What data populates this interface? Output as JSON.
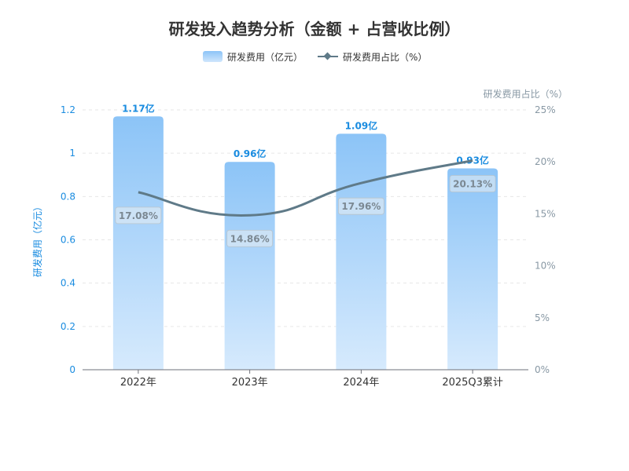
{
  "chart_data": {
    "type": "bar",
    "title": "研发投入趋势分析（金额 + 占营收比例）",
    "categories": [
      "2022年",
      "2023年",
      "2024年",
      "2025Q3累计"
    ],
    "series": [
      {
        "name": "研发费用（亿元）",
        "type": "bar",
        "axis": "left",
        "values": [
          1.17,
          0.96,
          1.09,
          0.93
        ],
        "labels": [
          "1.17亿",
          "0.96亿",
          "1.09亿",
          "0.93亿"
        ]
      },
      {
        "name": "研发费用占比（%）",
        "type": "line",
        "axis": "right",
        "values": [
          17.08,
          14.86,
          17.96,
          20.13
        ],
        "labels": [
          "17.08%",
          "14.86%",
          "17.96%",
          "20.13%"
        ]
      }
    ],
    "y_left": {
      "label": "研发费用（亿元）",
      "ticks": [
        "0",
        "0.2",
        "0.4",
        "0.6",
        "0.8",
        "1",
        "1.2"
      ],
      "range": [
        0,
        1.2
      ]
    },
    "y_right": {
      "label": "研发费用占比（%）",
      "ticks": [
        "0%",
        "5%",
        "10%",
        "15%",
        "20%",
        "25%"
      ],
      "range": [
        0,
        25
      ]
    },
    "legend_position": "top-center",
    "grid": true
  },
  "colors": {
    "bar_top": "#8cc4f7",
    "bar_bottom": "#d6eafd",
    "bar_label": "#1a8ce0",
    "line": "#5f7a88",
    "left_axis_text": "#1a8ce0",
    "right_axis_text": "#8898a4",
    "title": "#333333"
  }
}
